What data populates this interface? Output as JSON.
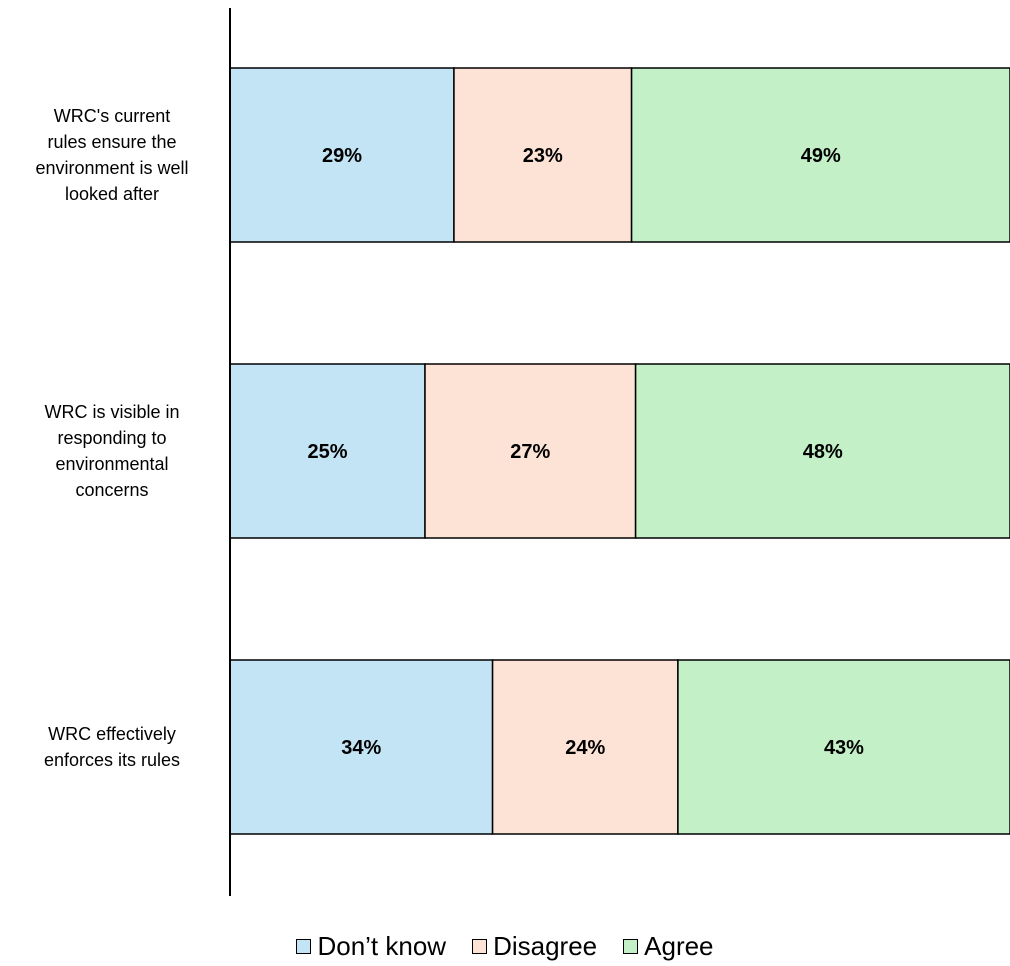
{
  "chart_data": {
    "type": "bar",
    "orientation": "horizontal",
    "stacked": true,
    "categories": [
      [
        "WRC's current",
        "rules ensure the",
        "environment is well",
        "looked  after"
      ],
      [
        "WRC is visible in",
        "responding to",
        "environmental",
        "concerns"
      ],
      [
        "WRC effectively",
        "enforces its rules"
      ]
    ],
    "series": [
      {
        "name": "Don’t know",
        "color": "#c3e4f5",
        "values": [
          29,
          25,
          34
        ],
        "labels": [
          "29%",
          "25%",
          "34%"
        ]
      },
      {
        "name": "Disagree",
        "color": "#fce3d6",
        "values": [
          23,
          27,
          24
        ],
        "labels": [
          "23%",
          "27%",
          "24%"
        ]
      },
      {
        "name": "Agree",
        "color": "#c3f0c6",
        "values": [
          49,
          48,
          43
        ],
        "labels": [
          "49%",
          "48%",
          "43%"
        ]
      }
    ],
    "legend_position": "bottom",
    "grid": false
  }
}
